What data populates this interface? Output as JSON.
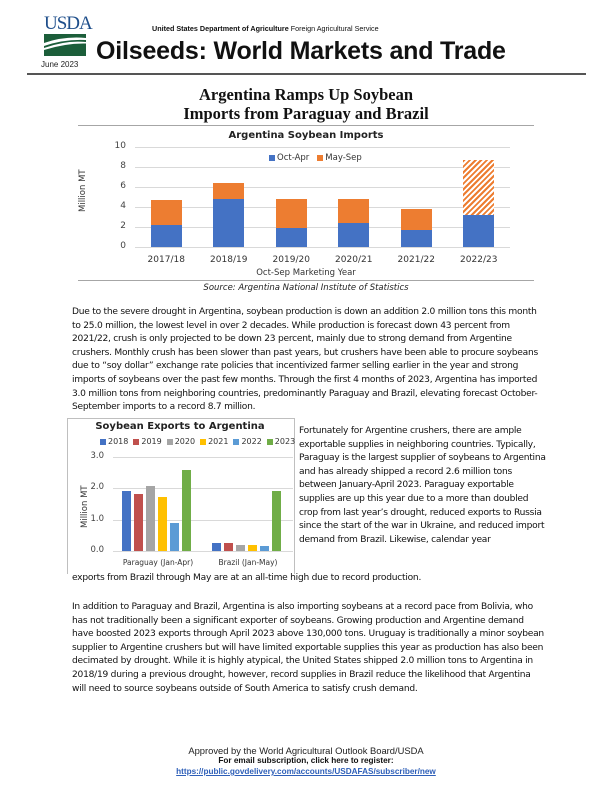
{
  "header": {
    "logo_text": "USDA",
    "date": "June 2023",
    "agency_bold": "United States Department of Agriculture",
    "agency_rest": "Foreign Agricultural Service",
    "title": "Oilseeds: World Markets and Trade"
  },
  "section": {
    "title_line1": "Argentina Ramps Up Soybean",
    "title_line2": "Imports from Paraguay and Brazil"
  },
  "chart_data": [
    {
      "type": "bar",
      "stacked": true,
      "title": "Argentina Soybean Imports",
      "xlabel": "Oct-Sep Marketing Year",
      "ylabel": "Million MT",
      "ylim": [
        0,
        10
      ],
      "yticks": [
        0,
        2,
        4,
        6,
        8,
        10
      ],
      "grid": true,
      "legend_position": "top-right",
      "categories": [
        "2017/18",
        "2018/19",
        "2019/20",
        "2020/21",
        "2021/22",
        "2022/23"
      ],
      "series": [
        {
          "name": "Oct-Apr",
          "color": "#4472c4",
          "values": [
            2.2,
            4.8,
            1.9,
            2.4,
            1.7,
            3.2
          ]
        },
        {
          "name": "May-Sep",
          "color": "#ed7d31",
          "values": [
            2.5,
            1.6,
            2.9,
            2.4,
            2.1,
            5.5
          ],
          "note": "2022/23 May-Sep shown hatched (forecast)"
        }
      ],
      "totals": [
        4.7,
        6.4,
        4.8,
        4.8,
        3.8,
        8.7
      ],
      "source": "Source: Argentina National Institute of Statistics"
    },
    {
      "type": "bar",
      "title": "Soybean Exports to Argentina",
      "ylabel": "Million MT",
      "ylim": [
        0,
        3.0
      ],
      "yticks": [
        "0.0",
        "1.0",
        "2.0",
        "3.0"
      ],
      "grid": true,
      "legend_position": "top",
      "categories": [
        "Paraguay (Jan-Apr)",
        "Brazil (Jan-May)"
      ],
      "series": [
        {
          "name": "2018",
          "color": "#4472c4",
          "values": [
            1.93,
            0.25
          ]
        },
        {
          "name": "2019",
          "color": "#c0504d",
          "values": [
            1.82,
            0.27
          ]
        },
        {
          "name": "2020",
          "color": "#a5a5a5",
          "values": [
            2.07,
            0.2
          ]
        },
        {
          "name": "2021",
          "color": "#ffc000",
          "values": [
            1.72,
            0.2
          ]
        },
        {
          "name": "2022",
          "color": "#5b9bd5",
          "values": [
            0.89,
            0.17
          ]
        },
        {
          "name": "2023",
          "color": "#70ad47",
          "values": [
            2.6,
            1.93
          ]
        }
      ]
    }
  ],
  "body": {
    "p1": "Due to the severe drought in Argentina, soybean production is down an addition 2.0 million tons this month to 25.0 million, the lowest level in over 2 decades. While production is forecast down 43 percent from 2021/22, crush is only projected to be down 23 percent, mainly due to strong demand from Argentine crushers. Monthly crush has been slower than past years, but crushers have been able to procure soybeans due to “soy dollar” exchange rate policies that incentivized farmer selling earlier in the year and strong imports of soybeans over the past few months. Through the first 4 months of 2023, Argentina has imported 3.0 million tons from neighboring countries, predominantly Paraguay and Brazil, elevating forecast October-September imports to a record 8.7 million.",
    "p2_side": "Fortunately for Argentine crushers, there are ample exportable supplies in neighboring countries. Typically, Paraguay is the largest supplier of soybeans to Argentina and has already shipped a record 2.6 million tons between January-April 2023. Paraguay exportable supplies are up this year due to a more than doubled crop from last year’s drought, reduced exports to Russia since the start of the war in Ukraine, and reduced import demand from Brazil. Likewise, calendar year",
    "p2_tail": "exports from Brazil through May are at an all-time high due to record production.",
    "p3": "In addition to Paraguay and Brazil, Argentina is also importing soybeans at a record pace from Bolivia, who has not traditionally been a significant exporter of soybeans. Growing production and Argentine demand have boosted 2023 exports through April 2023 above 130,000 tons. Uruguay is traditionally a minor soybean supplier to Argentine crushers but will have limited exportable supplies this year as production has also been decimated by drought. While it is highly atypical, the United States shipped 2.0 million tons to Argentina in 2018/19 during a previous drought, however, record supplies in Brazil reduce the likelihood that Argentina will need to source soybeans outside of South America to satisfy crush demand."
  },
  "footer": {
    "approved": "Approved by the World Agricultural Outlook Board/USDA",
    "subscribe": "For email subscription, click here to register:",
    "link": "https://public.govdelivery.com/accounts/USDAFAS/subscriber/new"
  }
}
